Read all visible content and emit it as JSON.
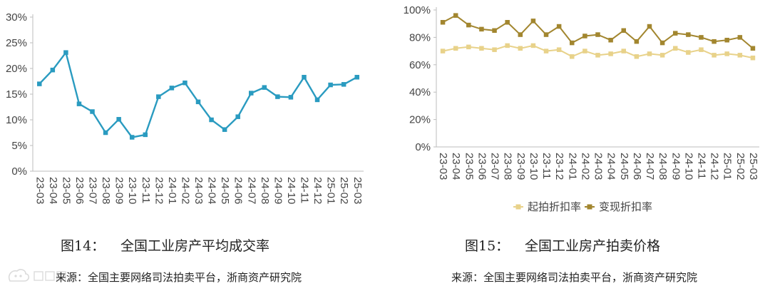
{
  "left_figure": {
    "number": "图14：",
    "title": "全国工业房产平均成交率",
    "source": "来源：全国主要网络司法拍卖平台，浙商资产研究院"
  },
  "right_figure": {
    "number": "图15：",
    "title": "全国工业房产拍卖价格",
    "source": "来源：全国主要网络司法拍卖平台，浙商资产研究院"
  },
  "chart_data": [
    {
      "type": "line",
      "categories": [
        "23-03",
        "23-04",
        "23-05",
        "23-06",
        "23-07",
        "23-08",
        "23-09",
        "23-10",
        "23-11",
        "23-12",
        "24-01",
        "24-02",
        "24-03",
        "24-04",
        "24-05",
        "24-06",
        "24-07",
        "24-08",
        "24-09",
        "24-10",
        "24-11",
        "24-12",
        "25-01",
        "25-02",
        "25-03"
      ],
      "series": [
        {
          "values": [
            17.0,
            19.7,
            23.1,
            13.1,
            11.6,
            7.5,
            10.1,
            6.6,
            7.1,
            14.5,
            16.2,
            17.2,
            13.5,
            10.0,
            8.1,
            10.6,
            15.2,
            16.3,
            14.5,
            14.4,
            18.3,
            13.9,
            16.8,
            16.9,
            18.3
          ],
          "color": "#2a9bc0"
        }
      ],
      "ylim": [
        0,
        30
      ],
      "yticks": [
        0,
        5,
        10,
        15,
        20,
        25,
        30
      ],
      "ytick_labels": [
        "0%",
        "5%",
        "10%",
        "15%",
        "20%",
        "25%",
        "30%"
      ],
      "grid": false,
      "xlabel": "",
      "ylabel": ""
    },
    {
      "type": "line",
      "categories": [
        "23-03",
        "23-04",
        "23-05",
        "23-06",
        "23-07",
        "23-08",
        "23-09",
        "23-10",
        "23-11",
        "23-12",
        "24-01",
        "24-02",
        "24-03",
        "24-04",
        "24-05",
        "24-06",
        "24-07",
        "24-08",
        "24-09",
        "24-10",
        "24-11",
        "24-12",
        "25-01",
        "25-02",
        "25-03"
      ],
      "series": [
        {
          "name": "起拍折扣率",
          "values": [
            70,
            72,
            73,
            72,
            71,
            74,
            72,
            74,
            70,
            71,
            66,
            70,
            67,
            68,
            70,
            66,
            68,
            67,
            72,
            69,
            71,
            67,
            68,
            67,
            65
          ],
          "color": "#e8d28a"
        },
        {
          "name": "变现折扣率",
          "values": [
            91,
            96,
            89,
            86,
            85,
            91,
            82,
            92,
            82,
            88,
            76,
            81,
            82,
            78,
            85,
            77,
            88,
            76,
            83,
            82,
            80,
            77,
            78,
            80,
            72
          ],
          "color": "#a2862f"
        }
      ],
      "ylim": [
        0,
        100
      ],
      "yticks": [
        0,
        20,
        40,
        60,
        80,
        100
      ],
      "ytick_labels": [
        "0%",
        "20%",
        "40%",
        "60%",
        "80%",
        "100%"
      ],
      "grid": false,
      "legend_position": "bottom",
      "xlabel": "",
      "ylabel": ""
    }
  ]
}
